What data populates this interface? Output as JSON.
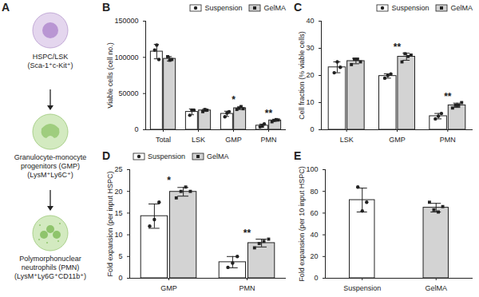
{
  "diagram": {
    "title": "A",
    "cells": [
      {
        "lines": [
          "HSPC/LSK",
          "(Sca-1⁺c-Kit⁺)"
        ]
      },
      {
        "lines": [
          "Granulocyte-monocyte",
          "progenitors (GMP)",
          "(LysM⁺Ly6C⁺)"
        ]
      },
      {
        "lines": [
          "Polymorphonuclear",
          "neutrophils (PMN)",
          "(LysM⁺Ly6G⁺CD11b⁺)"
        ]
      }
    ]
  },
  "chart_data": [
    {
      "type": "bar",
      "title": "B",
      "y_label": "Viable cells (cell no.)",
      "categories": [
        "Total",
        "LSK",
        "GMP",
        "PMN"
      ],
      "ylim": [
        0,
        150000
      ],
      "yticks": [
        0,
        50000,
        100000,
        150000
      ],
      "legend": "top-right",
      "series": [
        {
          "name": "Suspension",
          "color": "#ffffff",
          "marker": "circle",
          "values": [
            108000,
            24700,
            22000,
            5700
          ],
          "error": [
            10000,
            4000,
            3600,
            2100
          ],
          "points": [
            [
              110000,
              117000,
              97000
            ],
            [
              20000,
              27000,
              27000
            ],
            [
              18000,
              23000,
              25000
            ],
            [
              4000,
              5000,
              8000
            ]
          ]
        },
        {
          "name": "GelMA",
          "color": "#d3d3d3",
          "marker": "square",
          "values": [
            98000,
            26700,
            29750,
            12900
          ],
          "error": [
            3000,
            1500,
            1700,
            1300
          ],
          "points": [
            [
              101000,
              96000,
              97000
            ],
            [
              25000,
              28000,
              27000
            ],
            [
              28000,
              30000,
              32000,
              29000
            ],
            [
              11000,
              13000,
              14000,
              13500
            ]
          ]
        }
      ],
      "annotations": [
        {
          "category": "GMP",
          "text": "*"
        },
        {
          "category": "PMN",
          "text": "**"
        }
      ]
    },
    {
      "type": "bar",
      "title": "C",
      "y_label": "Cell fraction (% viable cells)",
      "categories": [
        "LSK",
        "GMP",
        "PMN"
      ],
      "ylim": [
        0,
        40
      ],
      "yticks": [
        0,
        10,
        20,
        30,
        40
      ],
      "legend": "top-right",
      "series": [
        {
          "name": "Suspension",
          "color": "#ffffff",
          "marker": "circle",
          "values": [
            23,
            19.8,
            5
          ],
          "error": [
            2,
            0.8,
            1
          ],
          "points": [
            [
              21,
              25,
              23
            ],
            [
              19,
              20,
              20.5
            ],
            [
              4,
              5,
              6
            ]
          ]
        },
        {
          "name": "GelMA",
          "color": "#d3d3d3",
          "marker": "square",
          "values": [
            25.3,
            26.9,
            9
          ],
          "error": [
            1,
            1.3,
            0.8
          ],
          "points": [
            [
              24,
              26,
              26,
              25
            ],
            [
              25,
              28,
              27,
              27.5
            ],
            [
              8,
              9,
              9,
              10
            ]
          ]
        }
      ],
      "annotations": [
        {
          "category": "GMP",
          "text": "**"
        },
        {
          "category": "PMN",
          "text": "**"
        }
      ]
    },
    {
      "type": "bar",
      "title": "D",
      "y_label": "Fold expansion (per input HSPC)",
      "categories": [
        "GMP",
        "PMN"
      ],
      "ylim": [
        0,
        25
      ],
      "yticks": [
        0,
        5,
        10,
        15,
        20,
        25
      ],
      "legend": "top-left",
      "series": [
        {
          "name": "Suspension",
          "color": "#ffffff",
          "marker": "circle",
          "values": [
            14.3,
            3.7
          ],
          "error": [
            2.8,
            1.3
          ],
          "points": [
            [
              12,
              13.5,
              17.5
            ],
            [
              2.5,
              3.5,
              5
            ]
          ]
        },
        {
          "name": "GelMA",
          "color": "#d3d3d3",
          "marker": "square",
          "values": [
            19.9,
            8.1
          ],
          "error": [
            1.0,
            0.9
          ],
          "points": [
            [
              18.5,
              20,
              21,
              20
            ],
            [
              7,
              8,
              8.5,
              9
            ]
          ]
        }
      ],
      "annotations": [
        {
          "category": "GMP",
          "text": "*"
        },
        {
          "category": "PMN",
          "text": "**"
        }
      ]
    },
    {
      "type": "bar",
      "title": "E",
      "y_label": "Fold expansion (per 10 input HSPC)",
      "categories": [
        "Suspension",
        "GelMA"
      ],
      "ylim": [
        0,
        100
      ],
      "yticks": [
        0,
        20,
        40,
        60,
        80,
        100
      ],
      "series": [
        {
          "name": "Suspension",
          "color": "#ffffff",
          "marker": "circle",
          "values": [
            72,
            null
          ],
          "error": [
            11,
            null
          ],
          "points": [
            [
              84,
              62,
              70
            ],
            []
          ]
        },
        {
          "name": "GelMA",
          "color": "#d3d3d3",
          "marker": "square",
          "values": [
            null,
            65
          ],
          "error": [
            null,
            4
          ],
          "points": [
            [],
            [
              70,
              63,
              61,
              66
            ]
          ]
        }
      ]
    }
  ]
}
